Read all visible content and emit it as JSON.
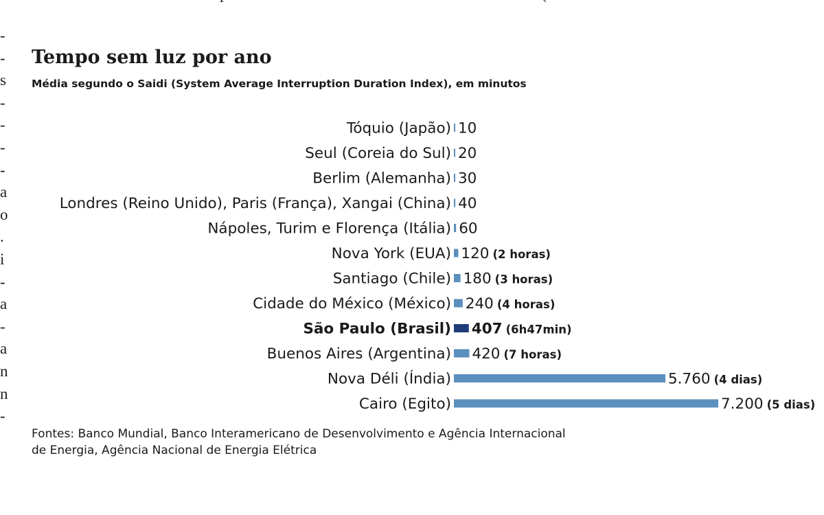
{
  "page_top_fragment": "p                                                                            (",
  "left_column_fragment": [
    "-",
    "-",
    "s",
    "-",
    "-",
    "-",
    "-",
    "a",
    "o",
    ".",
    "i",
    "-",
    "a",
    "-",
    "a",
    "n",
    "n",
    "-"
  ],
  "title": "Tempo sem luz por ano",
  "subtitle": "Média segundo o Saidi (System Average Interruption Duration Index), em minutos",
  "source_lines": [
    "Fontes: Banco Mundial, Banco Interamericano de Desenvolvimento e Agência Internacional",
    "de Energia, Agência Nacional de Energia Elétrica"
  ],
  "colors": {
    "bar": "#5b8fbd",
    "highlight_bar": "#1f3c78",
    "text": "#1a1a1a"
  },
  "chart_data": {
    "type": "bar",
    "orientation": "horizontal",
    "title": "Tempo sem luz por ano",
    "subtitle": "Média segundo o Saidi (System Average Interruption Duration Index), em minutos",
    "xlabel": "",
    "ylabel": "",
    "categories": [
      "Tóquio (Japão)",
      "Seul (Coreia do Sul)",
      "Berlim (Alemanha)",
      "Londres (Reino Unido), Paris (França), Xangai (China)",
      "Nápoles, Turim e Florença (Itália)",
      "Nova York (EUA)",
      "Santiago (Chile)",
      "Cidade do México (México)",
      "São Paulo (Brasil)",
      "Buenos Aires (Argentina)",
      "Nova Déli (Índia)",
      "Cairo (Egito)"
    ],
    "values": [
      10,
      20,
      30,
      40,
      60,
      120,
      180,
      240,
      407,
      420,
      5760,
      7200
    ],
    "value_labels": [
      "10",
      "20",
      "30",
      "40",
      "60",
      "120",
      "180",
      "240",
      "407",
      "420",
      "5.760",
      "7.200"
    ],
    "notes": [
      "",
      "",
      "",
      "",
      "",
      "(2 horas)",
      "(3 horas)",
      "(4 horas)",
      "(6h47min)",
      "(7 horas)",
      "(4 dias)",
      "(5 dias)"
    ],
    "highlight_index": 8,
    "xlim": [
      0,
      7200
    ],
    "grid": false,
    "legend": "none"
  }
}
